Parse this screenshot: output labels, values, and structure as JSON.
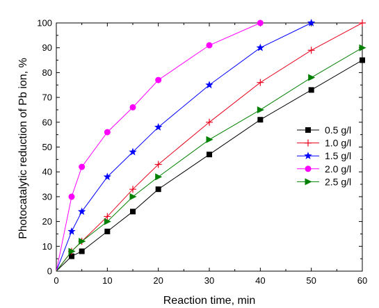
{
  "chart_data": {
    "type": "line",
    "title": "",
    "xlabel": "Reaction time, min",
    "ylabel": "Photocatalytic  reduction of Pb ion, %",
    "xlim": [
      0,
      60
    ],
    "ylim": [
      0,
      100
    ],
    "xticks": [
      0,
      10,
      20,
      30,
      40,
      50,
      60
    ],
    "yticks": [
      0,
      10,
      20,
      30,
      40,
      50,
      60,
      70,
      80,
      90,
      100
    ],
    "grid": false,
    "legend_position": "right",
    "series": [
      {
        "name": "0.5 g/l",
        "color": "#000000",
        "marker": "square",
        "x": [
          0,
          3,
          5,
          10,
          15,
          20,
          30,
          40,
          50,
          60
        ],
        "y": [
          0,
          6,
          8,
          16,
          24,
          33,
          47,
          61,
          73,
          85
        ]
      },
      {
        "name": "1.0 g/l",
        "color": "#e8001c",
        "marker": "plus",
        "x": [
          0,
          3,
          5,
          10,
          15,
          20,
          30,
          40,
          50,
          60
        ],
        "y": [
          0,
          8,
          12,
          22,
          33,
          43,
          60,
          76,
          89,
          100
        ]
      },
      {
        "name": "1.5 g/l",
        "color": "#0000ff",
        "marker": "star",
        "x": [
          0,
          3,
          5,
          10,
          15,
          20,
          30,
          40,
          50
        ],
        "y": [
          0,
          16,
          24,
          38,
          48,
          58,
          75,
          90,
          100
        ]
      },
      {
        "name": "2.0 g/l",
        "color": "#ff00ff",
        "marker": "circle",
        "x": [
          0,
          3,
          5,
          10,
          15,
          20,
          30,
          40
        ],
        "y": [
          0,
          30,
          42,
          56,
          66,
          77,
          91,
          100
        ]
      },
      {
        "name": "2.5 g/l",
        "color": "#008000",
        "marker": "triangle-right",
        "x": [
          0,
          3,
          5,
          10,
          15,
          20,
          30,
          40,
          50,
          60
        ],
        "y": [
          0,
          8,
          12,
          20,
          30,
          38,
          53,
          65,
          78,
          90
        ]
      }
    ]
  }
}
